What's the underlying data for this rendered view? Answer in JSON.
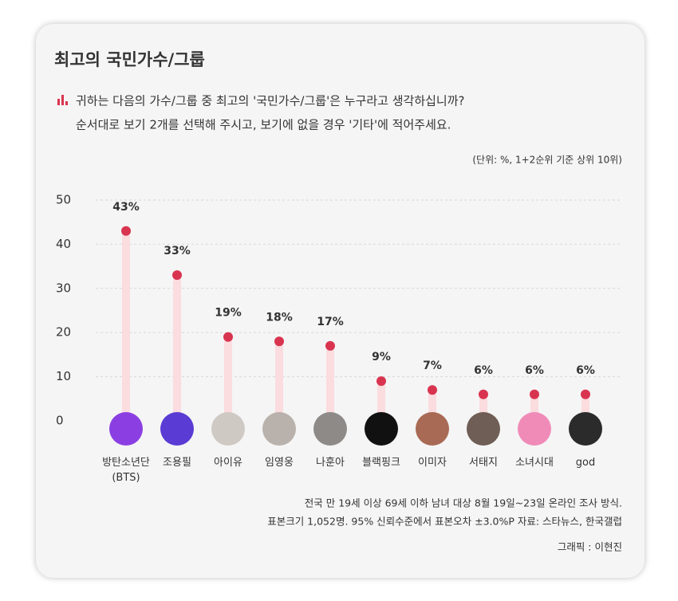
{
  "chart_data": {
    "type": "lollipop",
    "title": "최고의 국민가수/그룹",
    "subtitle": [
      "귀하는 다음의 가수/그룹 중 최고의 '국민가수/그룹'은 누구라고 생각하십니까?",
      "순서대로 보기 2개를 선택해 주시고, 보기에 없을 경우 '기타'에 적어주세요."
    ],
    "unit_note": "(단위: %, 1+2순위 기준 상위 10위)",
    "categories": [
      "방탄소년단 (BTS)",
      "조용필",
      "아이유",
      "임영웅",
      "나훈아",
      "블랙핑크",
      "이미자",
      "서태지",
      "소녀시대",
      "god"
    ],
    "values": [
      43,
      33,
      19,
      18,
      17,
      9,
      7,
      6,
      6,
      6
    ],
    "value_labels": [
      "43%",
      "33%",
      "19%",
      "18%",
      "17%",
      "9%",
      "7%",
      "6%",
      "6%",
      "6%"
    ],
    "color": "#d9344f",
    "stem_color": "#fbdcdf",
    "ylim": [
      0,
      50
    ],
    "yticks": [
      0,
      10,
      20,
      30,
      40,
      50
    ],
    "grid": true,
    "footnote": [
      "전국 만 19세 이상 69세 이하 남녀 대상 8월 19일~23일 온라인 조사 방식.",
      "표본크기 1,052명. 95% 신뢰수준에서 표본오차 ±3.0%P 자료: 스타뉴스, 한국갤럽"
    ],
    "credit": "그래픽 : 이현진"
  }
}
